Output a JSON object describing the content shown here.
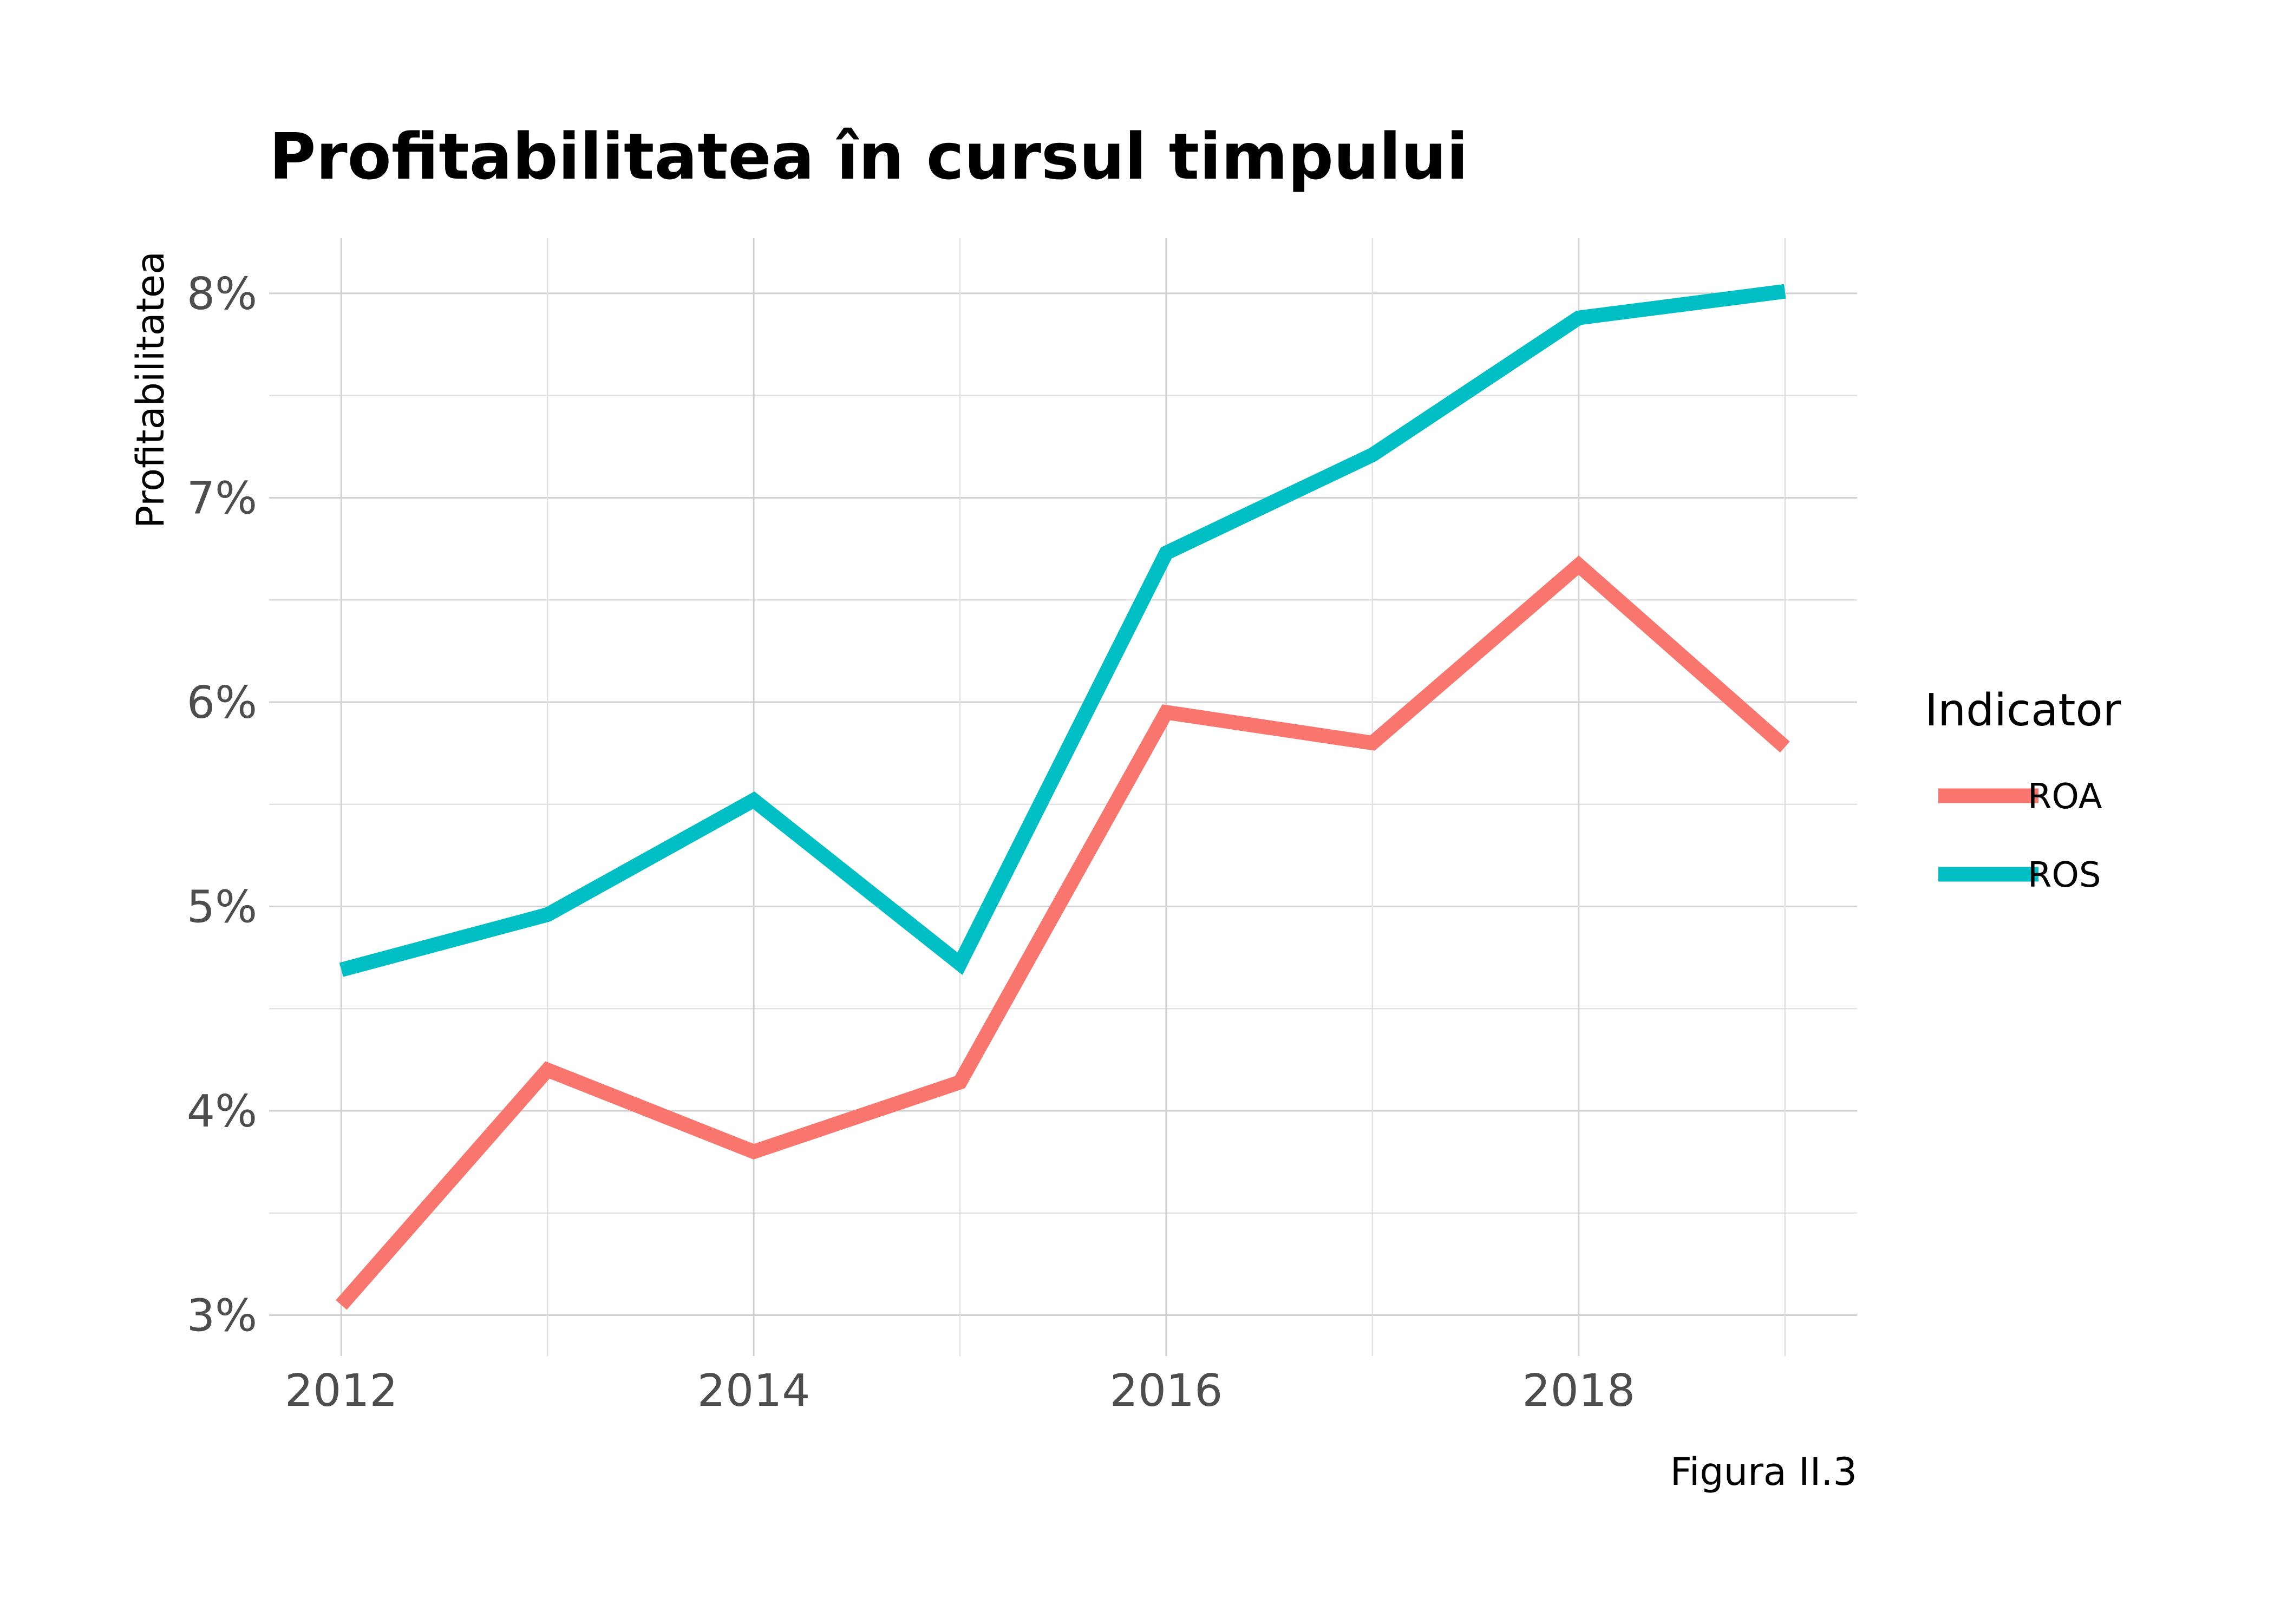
{
  "chart_data": {
    "type": "line",
    "title": "Profitabilitatea în cursul timpului",
    "xlabel": "",
    "ylabel": "Profitabilitatea",
    "caption": "Figura II.3",
    "x": [
      2012,
      2013,
      2014,
      2015,
      2016,
      2017,
      2018,
      2019
    ],
    "x_tick_labels": [
      "2012",
      "2014",
      "2016",
      "2018"
    ],
    "y_tick_labels": [
      "3%",
      "4%",
      "5%",
      "6%",
      "7%",
      "8%"
    ],
    "ylim": [
      2.8,
      8.27
    ],
    "xlim": [
      2011.65,
      2019.35
    ],
    "grid": true,
    "legend": {
      "title": "Indicator",
      "position": "right"
    },
    "series": [
      {
        "name": "ROA",
        "color": "#F8766D",
        "values": [
          3.05,
          4.2,
          3.8,
          4.14,
          5.95,
          5.8,
          6.67,
          5.78
        ]
      },
      {
        "name": "ROS",
        "color": "#00BFC4",
        "values": [
          4.69,
          4.96,
          5.52,
          4.72,
          6.73,
          7.21,
          7.88,
          8.01
        ]
      }
    ]
  }
}
